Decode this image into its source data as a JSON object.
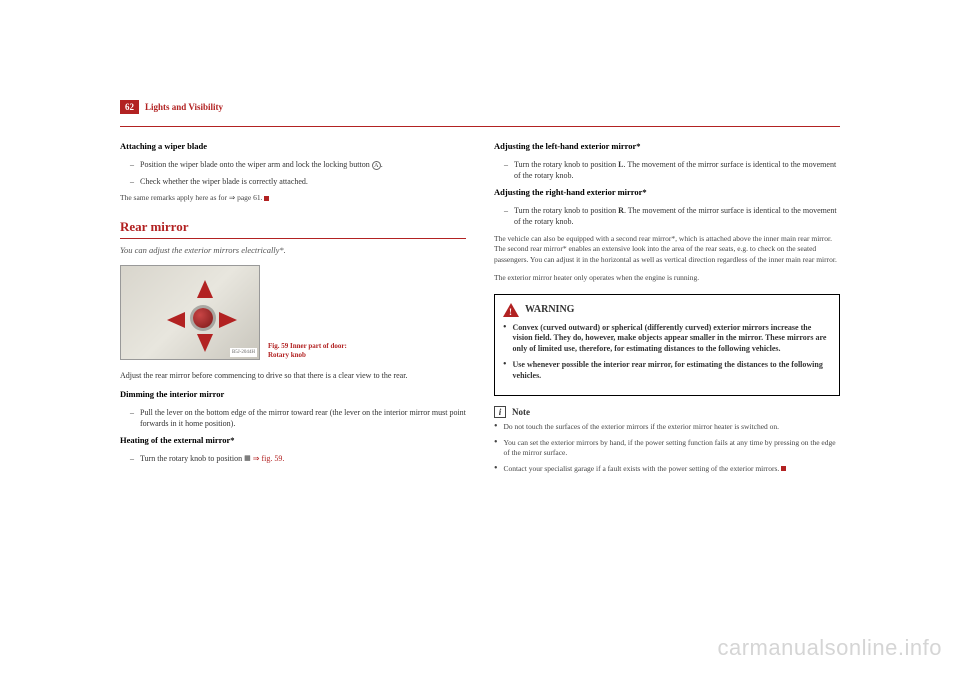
{
  "page": {
    "number": "62",
    "header": "Lights and Visibility"
  },
  "left": {
    "attach_heading": "Attaching a wiper blade",
    "attach_b1": "Position the wiper blade onto the wiper arm and lock the locking button ",
    "attach_b1_ref": "A",
    "attach_b1_end": ".",
    "attach_b2": "Check whether the wiper blade is correctly attached.",
    "attach_note": "The same remarks apply here as for ⇒ page 61.",
    "section_title": "Rear mirror",
    "section_sub": "You can adjust the exterior mirrors electrically*.",
    "fig_label": "B5J-2044H",
    "fig_caption_1": "Fig. 59   Inner part of door:",
    "fig_caption_2": "Rotary knob",
    "adjust_para": "Adjust the rear mirror before commencing to drive so that there is a clear view to the rear.",
    "dim_heading": "Dimming the interior mirror",
    "dim_b1": "Pull the lever on the bottom edge of the mirror toward rear (the lever on the interior mirror must point forwards in it home position).",
    "heat_heading": "Heating of the external mirror*",
    "heat_b1_pre": "Turn the rotary knob to position ",
    "heat_b1_post": " ⇒ fig. 59."
  },
  "right": {
    "adj_left_heading": "Adjusting the left-hand exterior mirror*",
    "adj_left_b1_pre": "Turn the rotary knob to position ",
    "adj_left_b1_sym": "L",
    "adj_left_b1_post": ". The movement of the mirror surface is identical to the movement of the rotary knob.",
    "adj_right_heading": "Adjusting the right-hand exterior mirror*",
    "adj_right_b1_pre": "Turn the rotary knob to position ",
    "adj_right_b1_sym": "R",
    "adj_right_b1_post": ". The movement of the mirror surface is identical to the movement of the rotary knob.",
    "para1": "The vehicle can also be equipped with a second rear mirror*, which is attached above the inner main rear mirror. The second rear mirror* enables an extensive look into the area of the rear seats, e.g. to check on the seated passengers. You can adjust it in the horizontal as well as vertical direction regardless of the inner main rear mirror.",
    "para2": "The exterior mirror heater only operates when the engine is running.",
    "warning_title": "WARNING",
    "warning_b1": "Convex (curved outward) or spherical (differently curved) exterior mirrors increase the vision field. They do, however, make objects appear smaller in the mirror. These mirrors are only of limited use, therefore, for estimating distances to the following vehicles.",
    "warning_b2": "Use whenever possible the interior rear mirror, for estimating the distances to the following vehicles.",
    "note_title": "Note",
    "note_b1": "Do not touch the surfaces of the exterior mirrors if the exterior mirror heater is switched on.",
    "note_b2": "You can set the exterior mirrors by hand, if the power setting function fails at any time by pressing on the edge of the mirror surface.",
    "note_b3": "Contact your specialist garage if a fault exists with the power setting of the exterior mirrors."
  },
  "watermark": "carmanualsonline.info",
  "colors": {
    "accent": "#b22222",
    "text": "#333333",
    "border": "#000000"
  }
}
